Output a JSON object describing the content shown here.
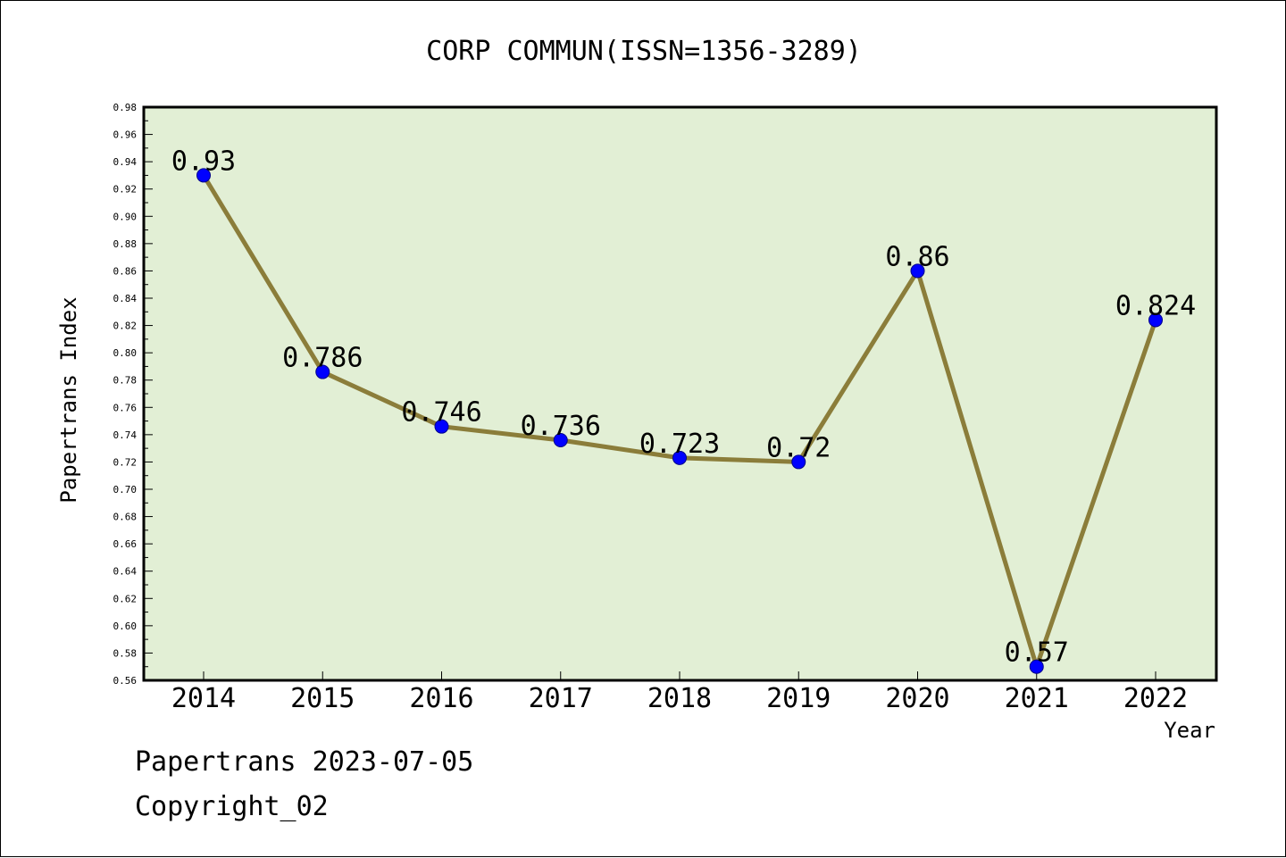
{
  "chart_data": {
    "type": "line",
    "title": "CORP COMMUN(ISSN=1356-3289)",
    "xlabel": "Year",
    "ylabel": "Papertrans Index",
    "categories": [
      "2014",
      "2015",
      "2016",
      "2017",
      "2018",
      "2019",
      "2020",
      "2021",
      "2022"
    ],
    "series": [
      {
        "values": [
          0.93,
          0.786,
          0.746,
          0.736,
          0.723,
          0.72,
          0.86,
          0.57,
          0.824
        ]
      }
    ],
    "data_labels": [
      "0.93",
      "0.786",
      "0.746",
      "0.736",
      "0.723",
      "0.72",
      "0.86",
      "0.57",
      "0.824"
    ],
    "ylim": [
      0.56,
      0.98
    ],
    "ytick_labels": [
      "0.56",
      "0.58",
      "0.60",
      "0.62",
      "0.64",
      "0.66",
      "0.68",
      "0.70",
      "0.72",
      "0.74",
      "0.76",
      "0.78",
      "0.80",
      "0.82",
      "0.84",
      "0.86",
      "0.88",
      "0.90",
      "0.92",
      "0.94",
      "0.96",
      "0.98"
    ],
    "colors": {
      "line": "#8b7d3a",
      "marker": "#0000ff",
      "plot_bg": "#e2efd5"
    },
    "grid": false,
    "legend": "none"
  },
  "footer": {
    "line1": "Papertrans 2023-07-05",
    "line2": "Copyright_02"
  }
}
